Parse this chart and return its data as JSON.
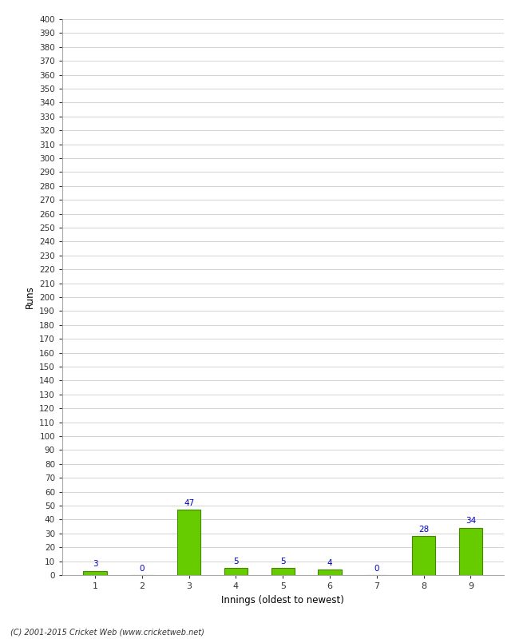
{
  "categories": [
    "1",
    "2",
    "3",
    "4",
    "5",
    "6",
    "7",
    "8",
    "9"
  ],
  "values": [
    3,
    0,
    47,
    5,
    5,
    4,
    0,
    28,
    34
  ],
  "bar_color": "#66cc00",
  "bar_edge_color": "#448800",
  "label_color": "#0000cc",
  "xlabel": "Innings (oldest to newest)",
  "ylabel": "Runs",
  "ylim": [
    0,
    400
  ],
  "ytick_step": 10,
  "background_color": "#ffffff",
  "grid_color": "#cccccc",
  "footer": "(C) 2001-2015 Cricket Web (www.cricketweb.net)"
}
